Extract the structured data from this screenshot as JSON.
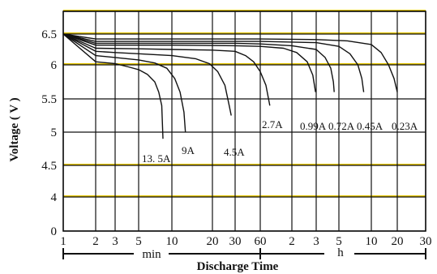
{
  "chart_data": {
    "type": "line",
    "title": "",
    "xlabel": "Discharge Time",
    "ylabel": "Voltage ( V )",
    "y_ticks": [
      "0",
      "4",
      "4.5",
      "5",
      "5.5",
      "6",
      "6.5"
    ],
    "x_ticks": [
      {
        "label": "1",
        "unit": "min"
      },
      {
        "label": "2",
        "unit": "min"
      },
      {
        "label": "3",
        "unit": "min"
      },
      {
        "label": "5",
        "unit": "min"
      },
      {
        "label": "10",
        "unit": "min"
      },
      {
        "label": "20",
        "unit": "min"
      },
      {
        "label": "30",
        "unit": "min"
      },
      {
        "label": "60",
        "unit": "min"
      },
      {
        "label": "2",
        "unit": "h"
      },
      {
        "label": "3",
        "unit": "h"
      },
      {
        "label": "5",
        "unit": "h"
      },
      {
        "label": "10",
        "unit": "h"
      },
      {
        "label": "20",
        "unit": "h"
      },
      {
        "label": "30",
        "unit": "h"
      }
    ],
    "x_scale": "log",
    "time_unit_labels": {
      "minutes": "min",
      "hours": "h"
    },
    "grid": true,
    "line_color": "#111111",
    "grid_color": "#111111",
    "highlight_grid_color": "#e3c400",
    "series": [
      {
        "name": "13. 5A",
        "points": [
          [
            1,
            6.5
          ],
          [
            2,
            6.05
          ],
          [
            3,
            6.02
          ],
          [
            4,
            5.97
          ],
          [
            5,
            5.93
          ],
          [
            6,
            5.86
          ],
          [
            7,
            5.75
          ],
          [
            7.6,
            5.6
          ],
          [
            8.1,
            5.4
          ],
          [
            8.3,
            4.9
          ]
        ]
      },
      {
        "name": "9A",
        "points": [
          [
            1,
            6.5
          ],
          [
            2,
            6.15
          ],
          [
            3,
            6.12
          ],
          [
            5,
            6.08
          ],
          [
            7,
            6.03
          ],
          [
            9,
            5.95
          ],
          [
            10.5,
            5.8
          ],
          [
            11.5,
            5.6
          ],
          [
            12.3,
            5.3
          ],
          [
            12.6,
            5.0
          ]
        ]
      },
      {
        "name": "4.5A",
        "points": [
          [
            1,
            6.5
          ],
          [
            2,
            6.22
          ],
          [
            3,
            6.2
          ],
          [
            5,
            6.18
          ],
          [
            10,
            6.15
          ],
          [
            15,
            6.1
          ],
          [
            19,
            6.02
          ],
          [
            22,
            5.9
          ],
          [
            25,
            5.7
          ],
          [
            27,
            5.4
          ],
          [
            28,
            5.25
          ]
        ]
      },
      {
        "name": "2.7A",
        "points": [
          [
            1,
            6.5
          ],
          [
            2,
            6.27
          ],
          [
            5,
            6.26
          ],
          [
            10,
            6.25
          ],
          [
            20,
            6.24
          ],
          [
            30,
            6.22
          ],
          [
            40,
            6.15
          ],
          [
            50,
            6.05
          ],
          [
            60,
            5.9
          ],
          [
            68,
            5.7
          ],
          [
            74,
            5.4
          ]
        ]
      },
      {
        "name": "0.99A",
        "points": [
          [
            1,
            6.5
          ],
          [
            2,
            6.32
          ],
          [
            10,
            6.32
          ],
          [
            30,
            6.31
          ],
          [
            60,
            6.3
          ],
          [
            100,
            6.27
          ],
          [
            130,
            6.2
          ],
          [
            155,
            6.05
          ],
          [
            170,
            5.85
          ],
          [
            178,
            5.6
          ]
        ]
      },
      {
        "name": "0.72A",
        "points": [
          [
            1,
            6.5
          ],
          [
            2,
            6.35
          ],
          [
            10,
            6.35
          ],
          [
            30,
            6.35
          ],
          [
            60,
            6.34
          ],
          [
            120,
            6.31
          ],
          [
            180,
            6.25
          ],
          [
            220,
            6.12
          ],
          [
            250,
            5.95
          ],
          [
            265,
            5.75
          ],
          [
            270,
            5.6
          ]
        ]
      },
      {
        "name": "0.45A",
        "points": [
          [
            1,
            6.5
          ],
          [
            2,
            6.38
          ],
          [
            10,
            6.38
          ],
          [
            60,
            6.38
          ],
          [
            180,
            6.36
          ],
          [
            300,
            6.3
          ],
          [
            380,
            6.18
          ],
          [
            450,
            6.0
          ],
          [
            490,
            5.8
          ],
          [
            510,
            5.6
          ]
        ]
      },
      {
        "name": "0.23A",
        "points": [
          [
            1,
            6.5
          ],
          [
            2,
            6.42
          ],
          [
            10,
            6.42
          ],
          [
            60,
            6.42
          ],
          [
            180,
            6.41
          ],
          [
            360,
            6.39
          ],
          [
            600,
            6.33
          ],
          [
            780,
            6.2
          ],
          [
            950,
            6.0
          ],
          [
            1100,
            5.8
          ],
          [
            1200,
            5.6
          ]
        ]
      }
    ]
  }
}
